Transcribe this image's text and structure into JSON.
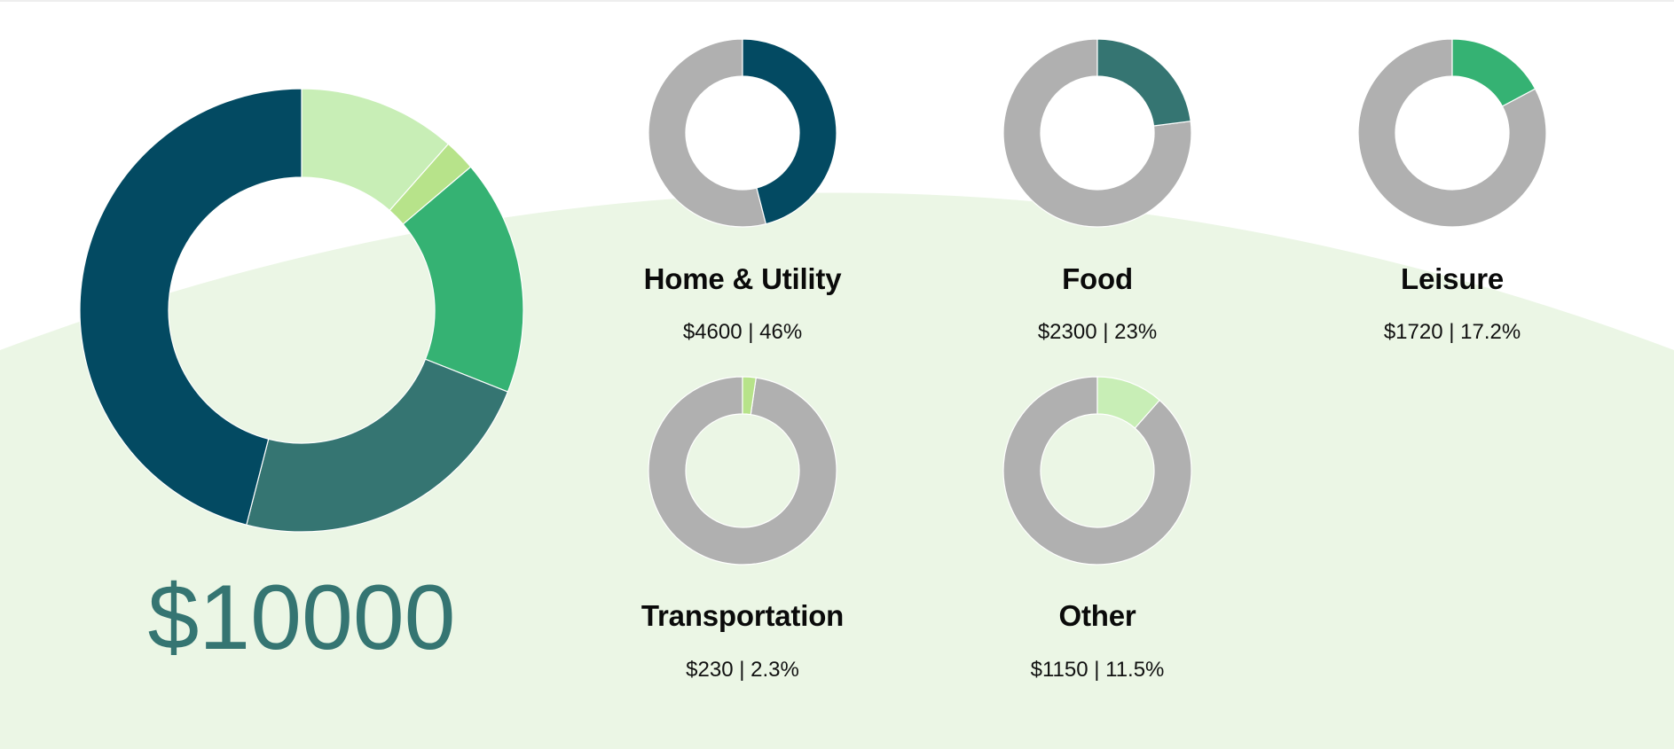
{
  "chart_data": {
    "type": "pie",
    "total_label": "$10000",
    "colors": {
      "background_arc": "#ebf6e5",
      "track": "#b0b0b0",
      "total_text": "#357572"
    },
    "main_donut": {
      "start_angle": 0,
      "slices": [
        {
          "category": "Other",
          "value": 1150,
          "color": "#c8eeb6"
        },
        {
          "category": "Transportation",
          "value": 230,
          "color": "#b7e38a"
        },
        {
          "category": "Leisure",
          "value": 1720,
          "color": "#35b273"
        },
        {
          "category": "Food",
          "value": 2300,
          "color": "#357572"
        },
        {
          "category": "Home & Utility",
          "value": 4600,
          "color": "#034a62"
        }
      ]
    },
    "categories": [
      {
        "name": "Home & Utility",
        "amount": 4600,
        "percent": 46,
        "label": "$4600 | 46%",
        "color": "#034a62"
      },
      {
        "name": "Food",
        "amount": 2300,
        "percent": 23,
        "label": "$2300 | 23%",
        "color": "#357572"
      },
      {
        "name": "Leisure",
        "amount": 1720,
        "percent": 17.2,
        "label": "$1720 | 17.2%",
        "color": "#35b273"
      },
      {
        "name": "Transportation",
        "amount": 230,
        "percent": 2.3,
        "label": "$230 | 2.3%",
        "color": "#b7e38a"
      },
      {
        "name": "Other",
        "amount": 1150,
        "percent": 11.5,
        "label": "$1150 | 11.5%",
        "color": "#c8eeb6"
      }
    ]
  }
}
